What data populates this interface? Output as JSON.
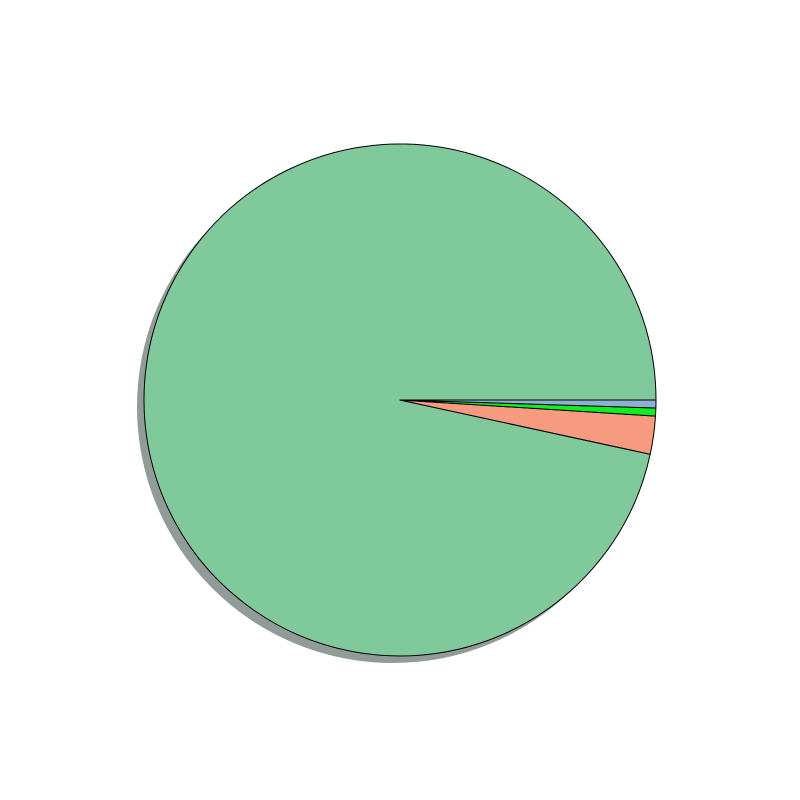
{
  "chart_data": {
    "type": "pie",
    "title": "",
    "start_angle_deg": 0,
    "direction": "counterclockwise",
    "shadow": true,
    "slices": [
      {
        "value": 96.6,
        "color": "#80c99b"
      },
      {
        "value": 2.4,
        "color": "#f79b80"
      },
      {
        "value": 0.5,
        "color": "#10ee22"
      },
      {
        "value": 0.5,
        "color": "#8cb1d3"
      }
    ],
    "edge_color": "#000000",
    "shadow_color": "#919b97"
  }
}
